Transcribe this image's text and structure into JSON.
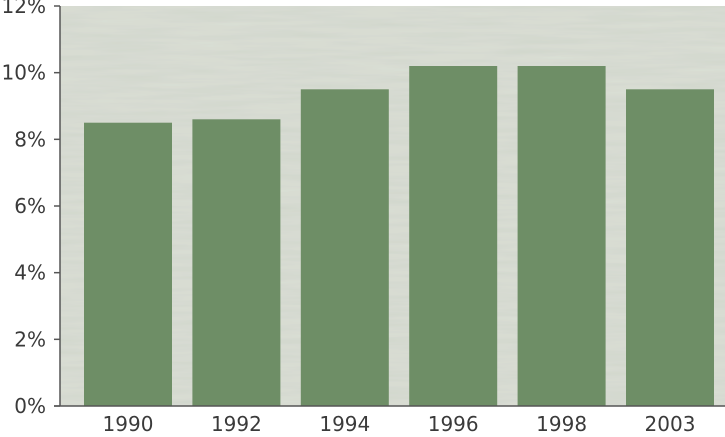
{
  "chart_data": {
    "type": "bar",
    "categories": [
      "1990",
      "1992",
      "1994",
      "1996",
      "1998",
      "2003"
    ],
    "values": [
      8.5,
      8.6,
      9.5,
      10.2,
      10.2,
      9.5
    ],
    "y_ticks": [
      "0%",
      "2%",
      "4%",
      "6%",
      "8%",
      "10%",
      "12%"
    ],
    "ylim": [
      0,
      12
    ],
    "grid": false,
    "legend": "none",
    "title": "",
    "xlabel": "",
    "ylabel": "",
    "colors": {
      "bar": "#6e8e66",
      "plot_background": "#c7cec1",
      "axis": "#555555"
    }
  }
}
